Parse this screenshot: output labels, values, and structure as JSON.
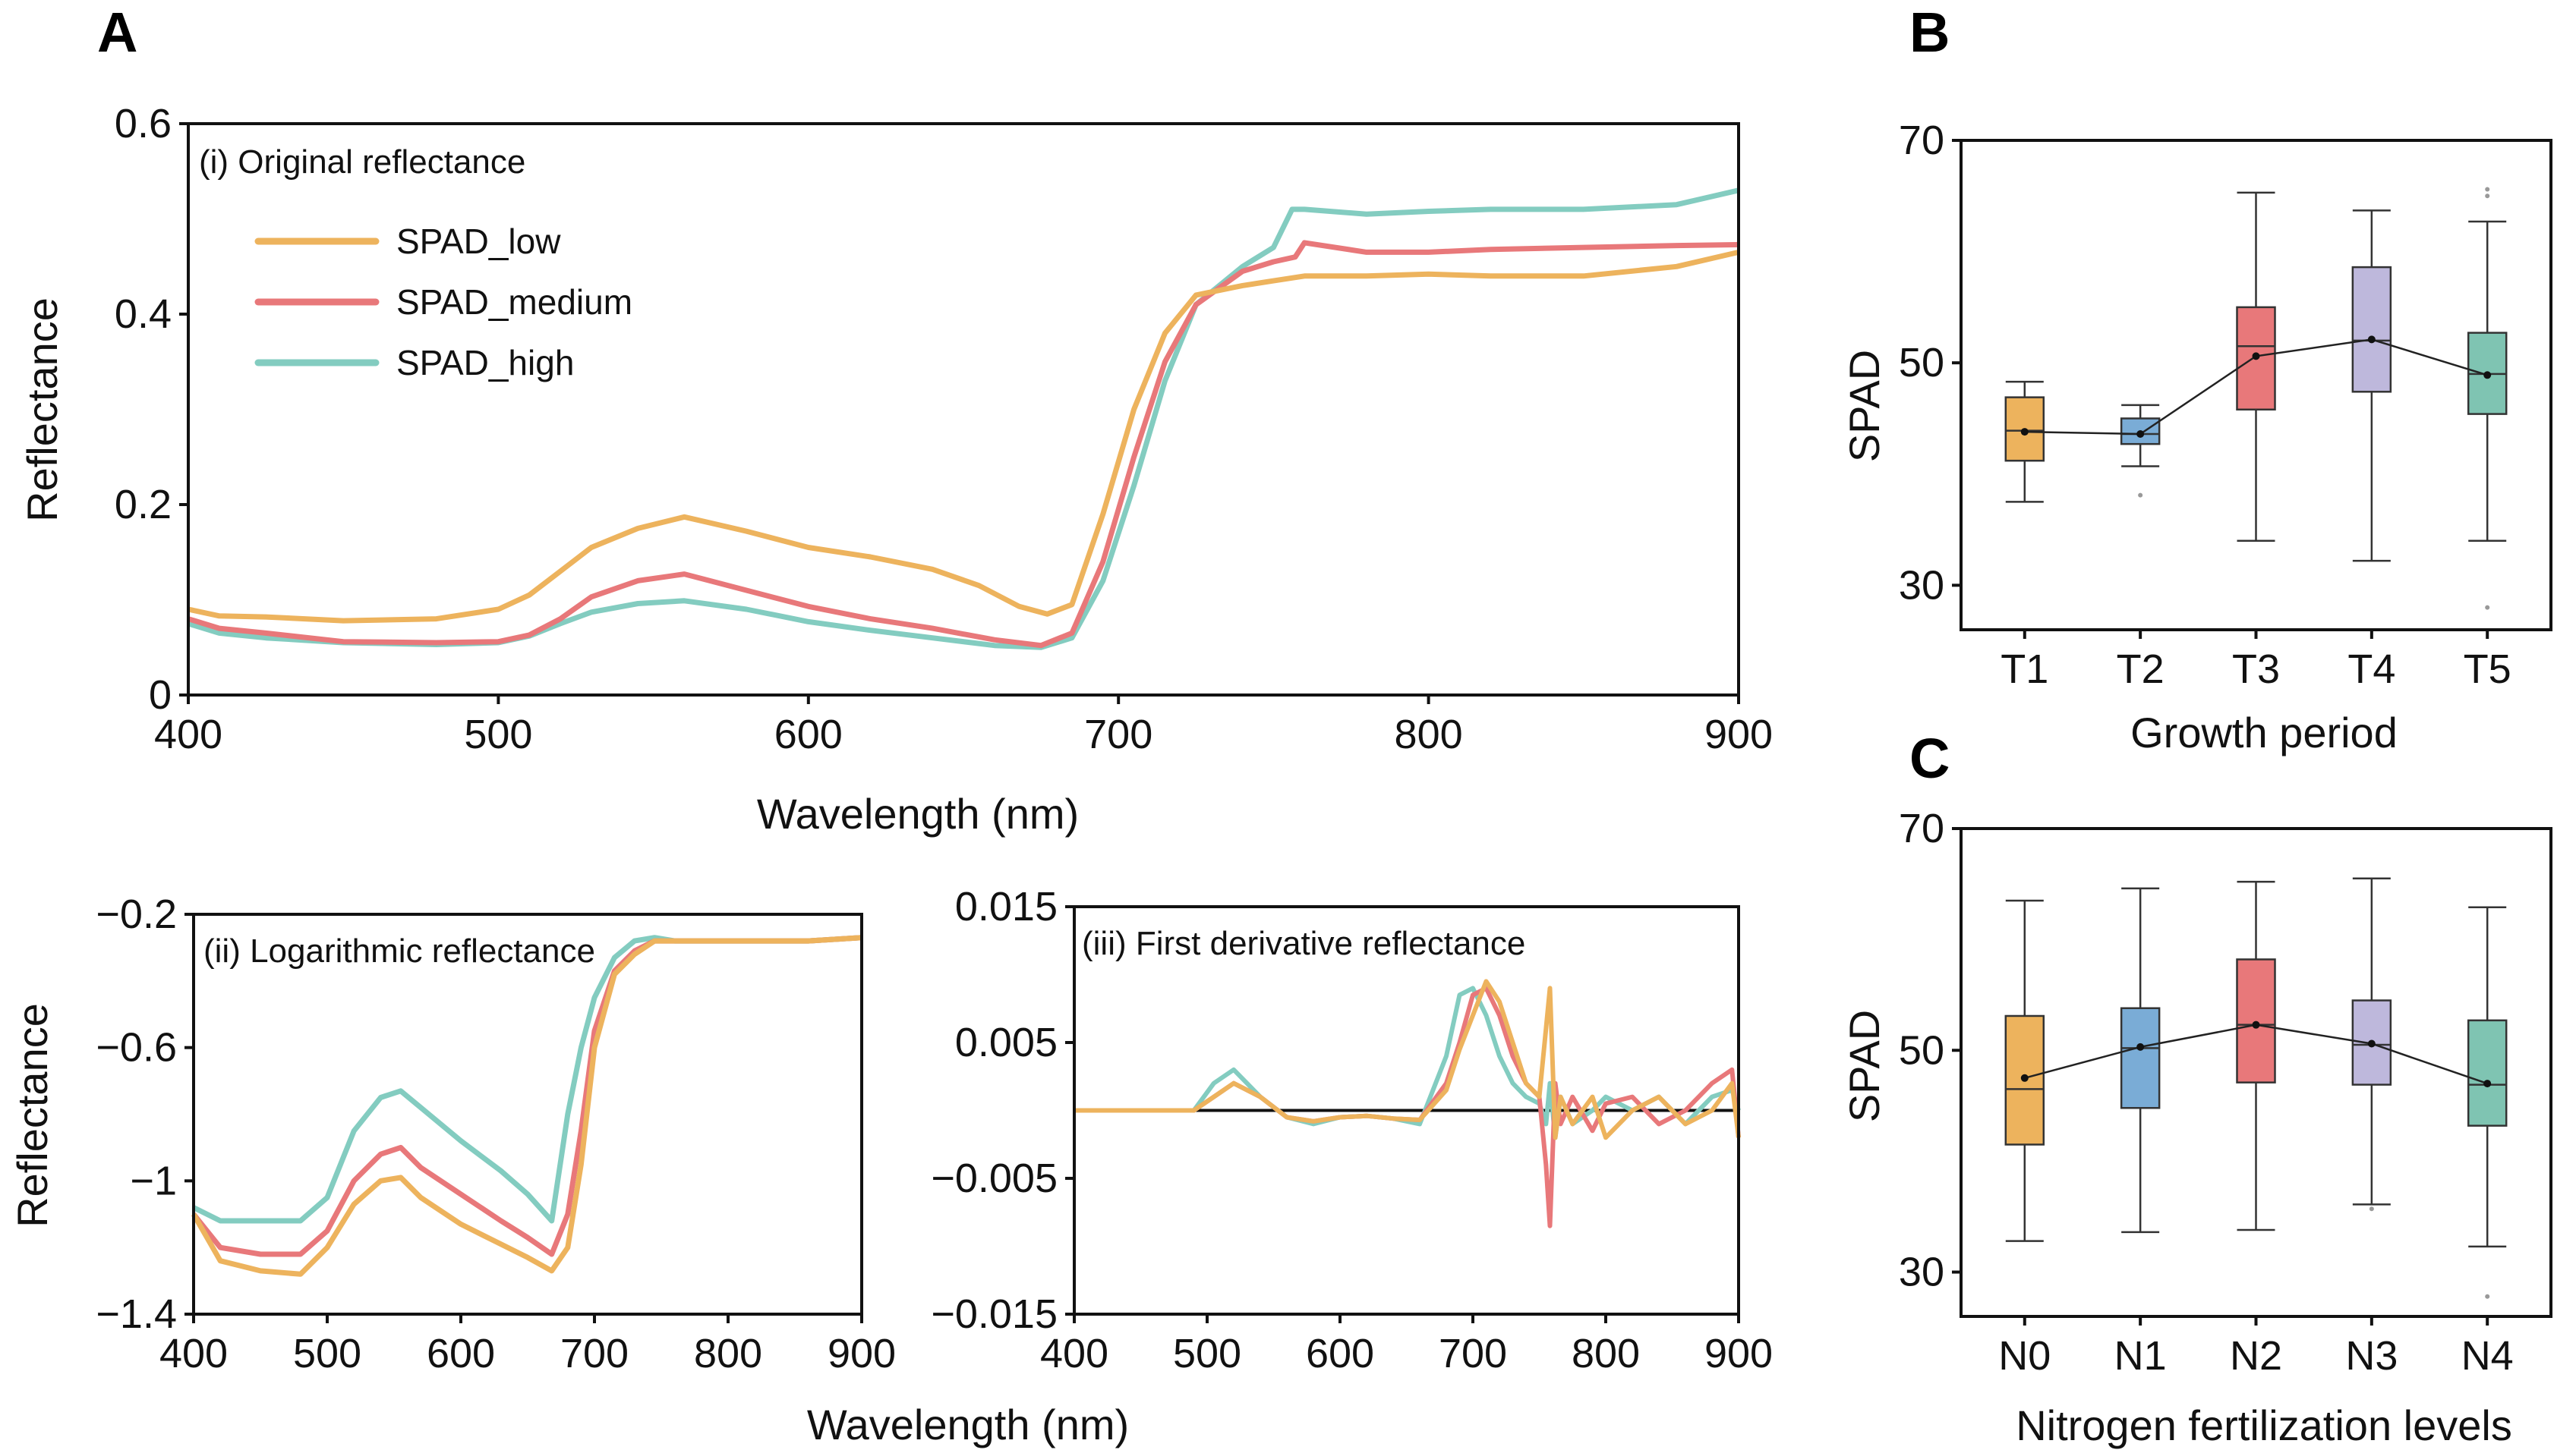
{
  "colors": {
    "low": "#EDB35D",
    "medium": "#E8787A",
    "high": "#83CCC0",
    "box_T1": "#EDB35D",
    "box_T2": "#7AACD6",
    "box_T3": "#E8787A",
    "box_T4": "#BEB8DC",
    "box_T5": "#7FC4B2"
  },
  "chart_data": [
    {
      "id": "A-i",
      "panel": "A",
      "type": "line",
      "inset_label": "(i) Original reflectance",
      "xlabel": "Wavelength (nm)",
      "ylabel": "Reflectance",
      "xlim": [
        400,
        900
      ],
      "ylim": [
        0,
        0.6
      ],
      "xticks": [
        "400",
        "500",
        "600",
        "700",
        "800",
        "900"
      ],
      "yticks": [
        "0",
        "0.2",
        "0.4",
        "0.6"
      ],
      "legend": [
        "SPAD_low",
        "SPAD_medium",
        "SPAD_high"
      ],
      "series": [
        {
          "name": "SPAD_low",
          "x": [
            400,
            410,
            425,
            450,
            480,
            500,
            510,
            520,
            530,
            545,
            560,
            580,
            600,
            620,
            640,
            655,
            668,
            677,
            685,
            695,
            705,
            715,
            725,
            740,
            750,
            760,
            780,
            800,
            820,
            850,
            880,
            900
          ],
          "y": [
            0.09,
            0.083,
            0.082,
            0.078,
            0.08,
            0.09,
            0.105,
            0.13,
            0.155,
            0.175,
            0.187,
            0.172,
            0.155,
            0.145,
            0.132,
            0.115,
            0.093,
            0.085,
            0.095,
            0.19,
            0.3,
            0.38,
            0.42,
            0.43,
            0.435,
            0.44,
            0.44,
            0.442,
            0.44,
            0.44,
            0.45,
            0.465
          ]
        },
        {
          "name": "SPAD_medium",
          "x": [
            400,
            410,
            425,
            450,
            480,
            500,
            510,
            520,
            530,
            545,
            560,
            580,
            600,
            620,
            640,
            660,
            675,
            685,
            695,
            705,
            715,
            725,
            740,
            750,
            757,
            760,
            780,
            800,
            820,
            850,
            880,
            900
          ],
          "y": [
            0.08,
            0.07,
            0.065,
            0.056,
            0.055,
            0.056,
            0.063,
            0.08,
            0.103,
            0.12,
            0.127,
            0.11,
            0.093,
            0.08,
            0.07,
            0.058,
            0.052,
            0.065,
            0.14,
            0.25,
            0.35,
            0.41,
            0.445,
            0.455,
            0.46,
            0.475,
            0.465,
            0.465,
            0.468,
            0.47,
            0.472,
            0.473
          ]
        },
        {
          "name": "SPAD_high",
          "x": [
            400,
            410,
            425,
            450,
            480,
            500,
            510,
            520,
            530,
            545,
            560,
            580,
            600,
            620,
            640,
            660,
            675,
            685,
            695,
            705,
            715,
            725,
            740,
            750,
            756,
            760,
            780,
            800,
            820,
            850,
            880,
            900
          ],
          "y": [
            0.075,
            0.065,
            0.06,
            0.055,
            0.053,
            0.055,
            0.062,
            0.075,
            0.087,
            0.096,
            0.099,
            0.09,
            0.077,
            0.068,
            0.06,
            0.052,
            0.05,
            0.06,
            0.12,
            0.22,
            0.33,
            0.41,
            0.45,
            0.47,
            0.51,
            0.51,
            0.505,
            0.508,
            0.51,
            0.51,
            0.515,
            0.53
          ]
        }
      ]
    },
    {
      "id": "A-ii",
      "panel": "A",
      "type": "line",
      "inset_label": "(ii) Logarithmic reflectance",
      "ylabel": "Reflectance",
      "xlim": [
        400,
        900
      ],
      "ylim": [
        -1.4,
        -0.2
      ],
      "xticks": [
        "400",
        "500",
        "600",
        "700",
        "800",
        "900"
      ],
      "yticks": [
        "−0.2",
        "−0.6",
        "−1",
        "−1.4"
      ],
      "series": [
        {
          "name": "SPAD_low",
          "x": [
            400,
            420,
            450,
            480,
            500,
            520,
            540,
            555,
            570,
            600,
            630,
            650,
            668,
            680,
            690,
            700,
            715,
            730,
            745,
            760,
            780,
            820,
            860,
            900
          ],
          "y": [
            -1.1,
            -1.24,
            -1.27,
            -1.28,
            -1.2,
            -1.07,
            -1.0,
            -0.99,
            -1.05,
            -1.13,
            -1.19,
            -1.23,
            -1.27,
            -1.2,
            -0.95,
            -0.6,
            -0.38,
            -0.32,
            -0.28,
            -0.28,
            -0.28,
            -0.28,
            -0.28,
            -0.27
          ]
        },
        {
          "name": "SPAD_medium",
          "x": [
            400,
            420,
            450,
            480,
            500,
            520,
            540,
            555,
            570,
            600,
            630,
            650,
            668,
            680,
            690,
            700,
            715,
            730,
            745,
            760,
            780,
            820,
            860,
            900
          ],
          "y": [
            -1.1,
            -1.2,
            -1.22,
            -1.22,
            -1.15,
            -1.0,
            -0.92,
            -0.9,
            -0.96,
            -1.04,
            -1.12,
            -1.17,
            -1.22,
            -1.1,
            -0.85,
            -0.55,
            -0.37,
            -0.31,
            -0.28,
            -0.28,
            -0.28,
            -0.28,
            -0.28,
            -0.27
          ]
        },
        {
          "name": "SPAD_high",
          "x": [
            400,
            420,
            450,
            480,
            500,
            520,
            540,
            555,
            570,
            600,
            630,
            650,
            668,
            680,
            690,
            700,
            715,
            730,
            745,
            760,
            780,
            820,
            860,
            900
          ],
          "y": [
            -1.08,
            -1.12,
            -1.12,
            -1.12,
            -1.05,
            -0.85,
            -0.75,
            -0.73,
            -0.78,
            -0.88,
            -0.97,
            -1.04,
            -1.12,
            -0.8,
            -0.6,
            -0.45,
            -0.33,
            -0.28,
            -0.27,
            -0.28,
            -0.28,
            -0.28,
            -0.28,
            -0.27
          ]
        }
      ]
    },
    {
      "id": "A-iii",
      "panel": "A",
      "type": "line",
      "inset_label": "(iii) First derivative reflectance",
      "xlim": [
        400,
        900
      ],
      "ylim": [
        -0.015,
        0.015
      ],
      "xticks": [
        "400",
        "500",
        "600",
        "700",
        "800",
        "900"
      ],
      "yticks": [
        "0.015",
        "0.005",
        "−0.005",
        "−0.015"
      ],
      "shared_xlabel": "Wavelength (nm)",
      "series": [
        {
          "name": "SPAD_low",
          "x": [
            400,
            430,
            460,
            490,
            505,
            520,
            540,
            560,
            580,
            600,
            620,
            640,
            660,
            680,
            690,
            700,
            710,
            720,
            730,
            740,
            750,
            755,
            758,
            762,
            766,
            775,
            790,
            800,
            820,
            840,
            860,
            880,
            895,
            900
          ],
          "y": [
            0.0,
            0.0,
            0.0,
            0.0,
            0.001,
            0.002,
            0.001,
            -0.0005,
            -0.0008,
            -0.0005,
            -0.0004,
            -0.0006,
            -0.0007,
            0.0015,
            0.0045,
            0.007,
            0.0095,
            0.008,
            0.005,
            0.002,
            0.001,
            0.006,
            0.009,
            -0.002,
            0.001,
            -0.001,
            0.001,
            -0.002,
            0.0,
            0.001,
            -0.001,
            0.0,
            0.002,
            -0.002
          ]
        },
        {
          "name": "SPAD_medium",
          "x": [
            400,
            430,
            460,
            490,
            505,
            520,
            540,
            560,
            580,
            600,
            620,
            640,
            660,
            680,
            690,
            700,
            710,
            720,
            730,
            740,
            750,
            755,
            758,
            762,
            766,
            775,
            790,
            800,
            820,
            840,
            860,
            880,
            895,
            900
          ],
          "y": [
            0.0,
            0.0,
            0.0,
            0.0,
            0.001,
            0.002,
            0.001,
            -0.0005,
            -0.0008,
            -0.0005,
            -0.0004,
            -0.0006,
            -0.0007,
            0.002,
            0.005,
            0.0085,
            0.009,
            0.007,
            0.004,
            0.002,
            0.001,
            -0.004,
            -0.0085,
            0.002,
            -0.001,
            0.001,
            -0.0015,
            0.0005,
            0.001,
            -0.001,
            0.0,
            0.002,
            0.003,
            -0.002
          ]
        },
        {
          "name": "SPAD_high",
          "x": [
            400,
            430,
            460,
            490,
            505,
            520,
            540,
            560,
            580,
            600,
            620,
            640,
            660,
            680,
            690,
            700,
            710,
            720,
            730,
            740,
            750,
            755,
            758,
            762,
            766,
            775,
            790,
            800,
            820,
            840,
            860,
            880,
            895,
            900
          ],
          "y": [
            0.0,
            0.0,
            0.0,
            0.0,
            0.002,
            0.003,
            0.001,
            -0.0005,
            -0.001,
            -0.0005,
            -0.0004,
            -0.0006,
            -0.001,
            0.004,
            0.0085,
            0.009,
            0.007,
            0.004,
            0.002,
            0.001,
            0.0005,
            -0.001,
            0.002,
            -0.002,
            0.001,
            -0.001,
            0.0,
            0.001,
            0.0,
            0.001,
            -0.001,
            0.001,
            0.0015,
            0.0
          ]
        }
      ]
    },
    {
      "id": "B",
      "panel": "B",
      "type": "box",
      "xlabel": "Growth period",
      "ylabel": "SPAD",
      "ylim": [
        26,
        70
      ],
      "yticks": [
        "70",
        "50",
        "30"
      ],
      "categories": [
        "T1",
        "T2",
        "T3",
        "T4",
        "T5"
      ],
      "boxes": [
        {
          "whisker_low": 37.5,
          "q1": 41.2,
          "median": 43.9,
          "q3": 46.9,
          "whisker_high": 48.3,
          "mean": 43.8,
          "outliers": []
        },
        {
          "whisker_low": 40.7,
          "q1": 42.7,
          "median": 43.6,
          "q3": 45.0,
          "whisker_high": 46.2,
          "mean": 43.6,
          "outliers": [
            38.1
          ]
        },
        {
          "whisker_low": 34.0,
          "q1": 45.8,
          "median": 51.5,
          "q3": 55.0,
          "whisker_high": 65.3,
          "mean": 50.6,
          "outliers": []
        },
        {
          "whisker_low": 32.2,
          "q1": 47.4,
          "median": 52.0,
          "q3": 58.6,
          "whisker_high": 63.7,
          "mean": 52.1,
          "outliers": []
        },
        {
          "whisker_low": 34.0,
          "q1": 45.4,
          "median": 49.0,
          "q3": 52.7,
          "whisker_high": 62.7,
          "mean": 48.9,
          "outliers": [
            28.0,
            65.0,
            65.6
          ]
        }
      ]
    },
    {
      "id": "C",
      "panel": "C",
      "type": "box",
      "xlabel": "Nitrogen fertilization levels",
      "ylabel": "SPAD",
      "ylim": [
        26,
        70
      ],
      "yticks": [
        "70",
        "50",
        "30"
      ],
      "categories": [
        "N0",
        "N1",
        "N2",
        "N3",
        "N4"
      ],
      "boxes": [
        {
          "whisker_low": 32.8,
          "q1": 41.5,
          "median": 46.5,
          "q3": 53.1,
          "whisker_high": 63.5,
          "mean": 47.5,
          "outliers": []
        },
        {
          "whisker_low": 33.6,
          "q1": 44.8,
          "median": 50.2,
          "q3": 53.8,
          "whisker_high": 64.6,
          "mean": 50.3,
          "outliers": []
        },
        {
          "whisker_low": 33.8,
          "q1": 47.1,
          "median": 52.3,
          "q3": 58.2,
          "whisker_high": 65.2,
          "mean": 52.3,
          "outliers": []
        },
        {
          "whisker_low": 36.1,
          "q1": 46.9,
          "median": 50.5,
          "q3": 54.5,
          "whisker_high": 65.5,
          "mean": 50.6,
          "outliers": [
            35.7
          ]
        },
        {
          "whisker_low": 32.3,
          "q1": 43.2,
          "median": 46.9,
          "q3": 52.7,
          "whisker_high": 62.9,
          "mean": 47.0,
          "outliers": [
            27.8
          ]
        }
      ]
    }
  ],
  "panel_letters": {
    "A": "A",
    "B": "B",
    "C": "C"
  },
  "shared_wavelength_label": "Wavelength (nm)"
}
